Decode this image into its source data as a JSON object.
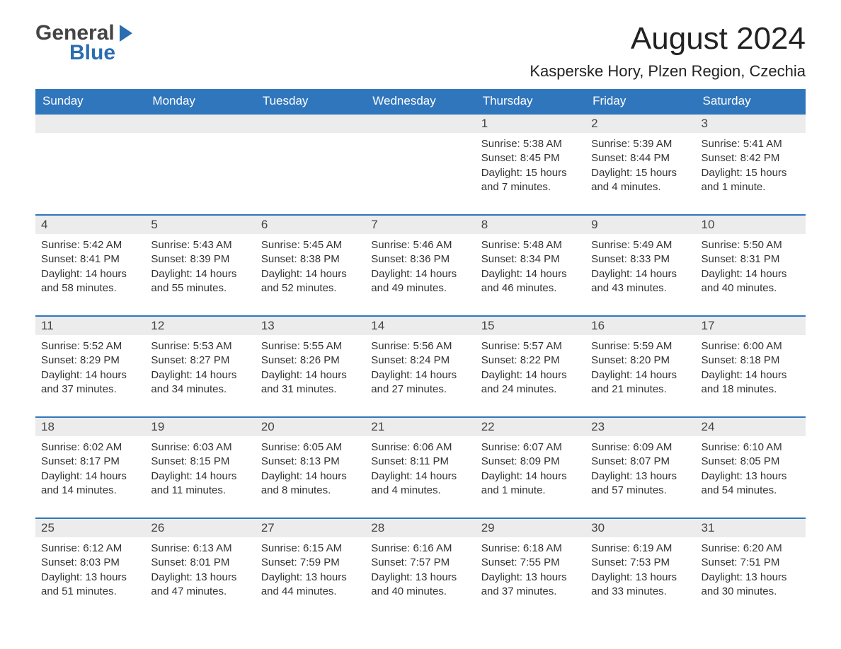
{
  "logo": {
    "line1": "General",
    "line2": "Blue"
  },
  "header": {
    "month_title": "August 2024",
    "location": "Kasperske Hory, Plzen Region, Czechia"
  },
  "colors": {
    "header_bg": "#3076bd",
    "header_text": "#ffffff",
    "day_number_bg": "#ececec",
    "text": "#333333",
    "border": "#3076bd"
  },
  "day_names": [
    "Sunday",
    "Monday",
    "Tuesday",
    "Wednesday",
    "Thursday",
    "Friday",
    "Saturday"
  ],
  "weeks": [
    [
      {
        "day": "",
        "sunrise": "",
        "sunset": "",
        "daylight": ""
      },
      {
        "day": "",
        "sunrise": "",
        "sunset": "",
        "daylight": ""
      },
      {
        "day": "",
        "sunrise": "",
        "sunset": "",
        "daylight": ""
      },
      {
        "day": "",
        "sunrise": "",
        "sunset": "",
        "daylight": ""
      },
      {
        "day": "1",
        "sunrise": "Sunrise: 5:38 AM",
        "sunset": "Sunset: 8:45 PM",
        "daylight": "Daylight: 15 hours and 7 minutes."
      },
      {
        "day": "2",
        "sunrise": "Sunrise: 5:39 AM",
        "sunset": "Sunset: 8:44 PM",
        "daylight": "Daylight: 15 hours and 4 minutes."
      },
      {
        "day": "3",
        "sunrise": "Sunrise: 5:41 AM",
        "sunset": "Sunset: 8:42 PM",
        "daylight": "Daylight: 15 hours and 1 minute."
      }
    ],
    [
      {
        "day": "4",
        "sunrise": "Sunrise: 5:42 AM",
        "sunset": "Sunset: 8:41 PM",
        "daylight": "Daylight: 14 hours and 58 minutes."
      },
      {
        "day": "5",
        "sunrise": "Sunrise: 5:43 AM",
        "sunset": "Sunset: 8:39 PM",
        "daylight": "Daylight: 14 hours and 55 minutes."
      },
      {
        "day": "6",
        "sunrise": "Sunrise: 5:45 AM",
        "sunset": "Sunset: 8:38 PM",
        "daylight": "Daylight: 14 hours and 52 minutes."
      },
      {
        "day": "7",
        "sunrise": "Sunrise: 5:46 AM",
        "sunset": "Sunset: 8:36 PM",
        "daylight": "Daylight: 14 hours and 49 minutes."
      },
      {
        "day": "8",
        "sunrise": "Sunrise: 5:48 AM",
        "sunset": "Sunset: 8:34 PM",
        "daylight": "Daylight: 14 hours and 46 minutes."
      },
      {
        "day": "9",
        "sunrise": "Sunrise: 5:49 AM",
        "sunset": "Sunset: 8:33 PM",
        "daylight": "Daylight: 14 hours and 43 minutes."
      },
      {
        "day": "10",
        "sunrise": "Sunrise: 5:50 AM",
        "sunset": "Sunset: 8:31 PM",
        "daylight": "Daylight: 14 hours and 40 minutes."
      }
    ],
    [
      {
        "day": "11",
        "sunrise": "Sunrise: 5:52 AM",
        "sunset": "Sunset: 8:29 PM",
        "daylight": "Daylight: 14 hours and 37 minutes."
      },
      {
        "day": "12",
        "sunrise": "Sunrise: 5:53 AM",
        "sunset": "Sunset: 8:27 PM",
        "daylight": "Daylight: 14 hours and 34 minutes."
      },
      {
        "day": "13",
        "sunrise": "Sunrise: 5:55 AM",
        "sunset": "Sunset: 8:26 PM",
        "daylight": "Daylight: 14 hours and 31 minutes."
      },
      {
        "day": "14",
        "sunrise": "Sunrise: 5:56 AM",
        "sunset": "Sunset: 8:24 PM",
        "daylight": "Daylight: 14 hours and 27 minutes."
      },
      {
        "day": "15",
        "sunrise": "Sunrise: 5:57 AM",
        "sunset": "Sunset: 8:22 PM",
        "daylight": "Daylight: 14 hours and 24 minutes."
      },
      {
        "day": "16",
        "sunrise": "Sunrise: 5:59 AM",
        "sunset": "Sunset: 8:20 PM",
        "daylight": "Daylight: 14 hours and 21 minutes."
      },
      {
        "day": "17",
        "sunrise": "Sunrise: 6:00 AM",
        "sunset": "Sunset: 8:18 PM",
        "daylight": "Daylight: 14 hours and 18 minutes."
      }
    ],
    [
      {
        "day": "18",
        "sunrise": "Sunrise: 6:02 AM",
        "sunset": "Sunset: 8:17 PM",
        "daylight": "Daylight: 14 hours and 14 minutes."
      },
      {
        "day": "19",
        "sunrise": "Sunrise: 6:03 AM",
        "sunset": "Sunset: 8:15 PM",
        "daylight": "Daylight: 14 hours and 11 minutes."
      },
      {
        "day": "20",
        "sunrise": "Sunrise: 6:05 AM",
        "sunset": "Sunset: 8:13 PM",
        "daylight": "Daylight: 14 hours and 8 minutes."
      },
      {
        "day": "21",
        "sunrise": "Sunrise: 6:06 AM",
        "sunset": "Sunset: 8:11 PM",
        "daylight": "Daylight: 14 hours and 4 minutes."
      },
      {
        "day": "22",
        "sunrise": "Sunrise: 6:07 AM",
        "sunset": "Sunset: 8:09 PM",
        "daylight": "Daylight: 14 hours and 1 minute."
      },
      {
        "day": "23",
        "sunrise": "Sunrise: 6:09 AM",
        "sunset": "Sunset: 8:07 PM",
        "daylight": "Daylight: 13 hours and 57 minutes."
      },
      {
        "day": "24",
        "sunrise": "Sunrise: 6:10 AM",
        "sunset": "Sunset: 8:05 PM",
        "daylight": "Daylight: 13 hours and 54 minutes."
      }
    ],
    [
      {
        "day": "25",
        "sunrise": "Sunrise: 6:12 AM",
        "sunset": "Sunset: 8:03 PM",
        "daylight": "Daylight: 13 hours and 51 minutes."
      },
      {
        "day": "26",
        "sunrise": "Sunrise: 6:13 AM",
        "sunset": "Sunset: 8:01 PM",
        "daylight": "Daylight: 13 hours and 47 minutes."
      },
      {
        "day": "27",
        "sunrise": "Sunrise: 6:15 AM",
        "sunset": "Sunset: 7:59 PM",
        "daylight": "Daylight: 13 hours and 44 minutes."
      },
      {
        "day": "28",
        "sunrise": "Sunrise: 6:16 AM",
        "sunset": "Sunset: 7:57 PM",
        "daylight": "Daylight: 13 hours and 40 minutes."
      },
      {
        "day": "29",
        "sunrise": "Sunrise: 6:18 AM",
        "sunset": "Sunset: 7:55 PM",
        "daylight": "Daylight: 13 hours and 37 minutes."
      },
      {
        "day": "30",
        "sunrise": "Sunrise: 6:19 AM",
        "sunset": "Sunset: 7:53 PM",
        "daylight": "Daylight: 13 hours and 33 minutes."
      },
      {
        "day": "31",
        "sunrise": "Sunrise: 6:20 AM",
        "sunset": "Sunset: 7:51 PM",
        "daylight": "Daylight: 13 hours and 30 minutes."
      }
    ]
  ]
}
